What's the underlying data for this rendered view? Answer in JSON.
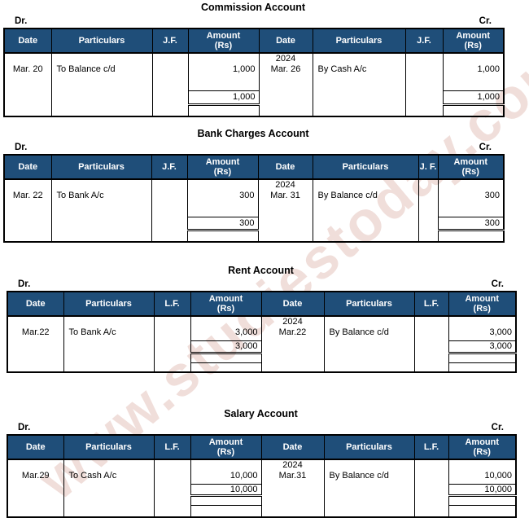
{
  "watermark": {
    "text": "www.studiestoday.com",
    "color": "#c68070"
  },
  "header_color": "#1F4E79",
  "accounts": [
    {
      "title": "Commission Account",
      "dr_label": "Dr.",
      "cr_label": "Cr.",
      "headers": {
        "date_left": "Date",
        "particulars_left": "Particulars",
        "folio_left": "J.F.",
        "amount_line1": "Amount",
        "amount_line2": "(Rs)",
        "date_right": "Date",
        "particulars_right": "Particulars",
        "folio_right": "J.F."
      },
      "debit": {
        "year": "",
        "date": "Mar. 20",
        "particulars": "To Balance c/d",
        "folio": "",
        "amount": "1,000",
        "total": "1,000"
      },
      "credit": {
        "year": "2024",
        "date": "Mar. 26",
        "particulars": "By Cash A/c",
        "folio": "",
        "amount": "1,000",
        "total": "1,000"
      }
    },
    {
      "title": "Bank Charges Account",
      "dr_label": "Dr.",
      "cr_label": "Cr.",
      "headers": {
        "date_left": "Date",
        "particulars_left": "Particulars",
        "folio_left": "J.F.",
        "amount_line1": "Amount",
        "amount_line2": "(Rs)",
        "date_right": "Date",
        "particulars_right": "Particulars",
        "folio_right": "J. F."
      },
      "debit": {
        "year": "",
        "date": "Mar. 22",
        "particulars": "To Bank A/c",
        "folio": "",
        "amount": "300",
        "total": "300"
      },
      "credit": {
        "year": "2024",
        "date": "Mar. 31",
        "particulars": "By Balance c/d",
        "folio": "",
        "amount": "300",
        "total": "300"
      }
    },
    {
      "title": "Rent Account",
      "dr_label": "Dr.",
      "cr_label": "Cr.",
      "headers": {
        "date_left": "Date",
        "particulars_left": "Particulars",
        "folio_left": "L.F.",
        "amount_line1": "Amount",
        "amount_line2": "(Rs)",
        "date_right": "Date",
        "particulars_right": "Particulars",
        "folio_right": "L.F."
      },
      "debit": {
        "year": "",
        "date": "Mar.22",
        "particulars": "To Bank A/c",
        "folio": "",
        "amount": "3,000",
        "total": "3,000"
      },
      "credit": {
        "year": "2024",
        "date": "Mar.22",
        "particulars": "By Balance c/d",
        "folio": "",
        "amount": "3,000",
        "total": "3,000"
      }
    },
    {
      "title": "Salary Account",
      "dr_label": "Dr.",
      "cr_label": "Cr.",
      "headers": {
        "date_left": "Date",
        "particulars_left": "Particulars",
        "folio_left": "L.F.",
        "amount_line1": "Amount",
        "amount_line2": "(Rs)",
        "date_right": "Date",
        "particulars_right": "Particulars",
        "folio_right": "L.F."
      },
      "debit": {
        "year": "",
        "date": "Mar.29",
        "particulars": "To Cash A/c",
        "folio": "",
        "amount": "10,000",
        "total": "10,000"
      },
      "credit": {
        "year": "2024",
        "date": "Mar.31",
        "particulars": "By Balance c/d",
        "folio": "",
        "amount": "10,000",
        "total": "10,000"
      }
    }
  ]
}
